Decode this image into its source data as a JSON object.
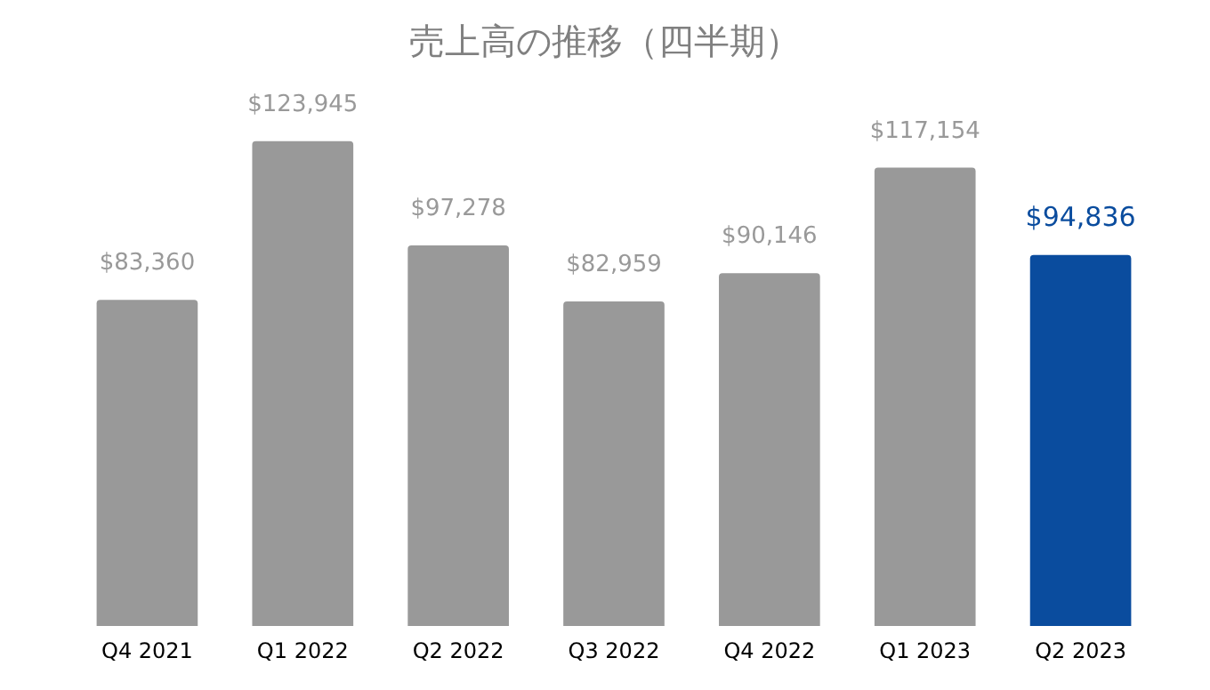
{
  "chart_data": {
    "type": "bar",
    "title": "売上高の推移（四半期）",
    "categories": [
      "Q4 2021",
      "Q1 2022",
      "Q2 2022",
      "Q3 2022",
      "Q4 2022",
      "Q1 2023",
      "Q2 2023"
    ],
    "values": [
      83360,
      123945,
      97278,
      82959,
      90146,
      117154,
      94836
    ],
    "colors": [
      "#999999",
      "#999999",
      "#999999",
      "#999999",
      "#999999",
      "#999999",
      "#0a4c9e"
    ],
    "value_labels": [
      "$83,360",
      "$123,945",
      "$97,278",
      "$82,959",
      "$90,146",
      "$117,154",
      "$94,836"
    ],
    "grid": false
  }
}
